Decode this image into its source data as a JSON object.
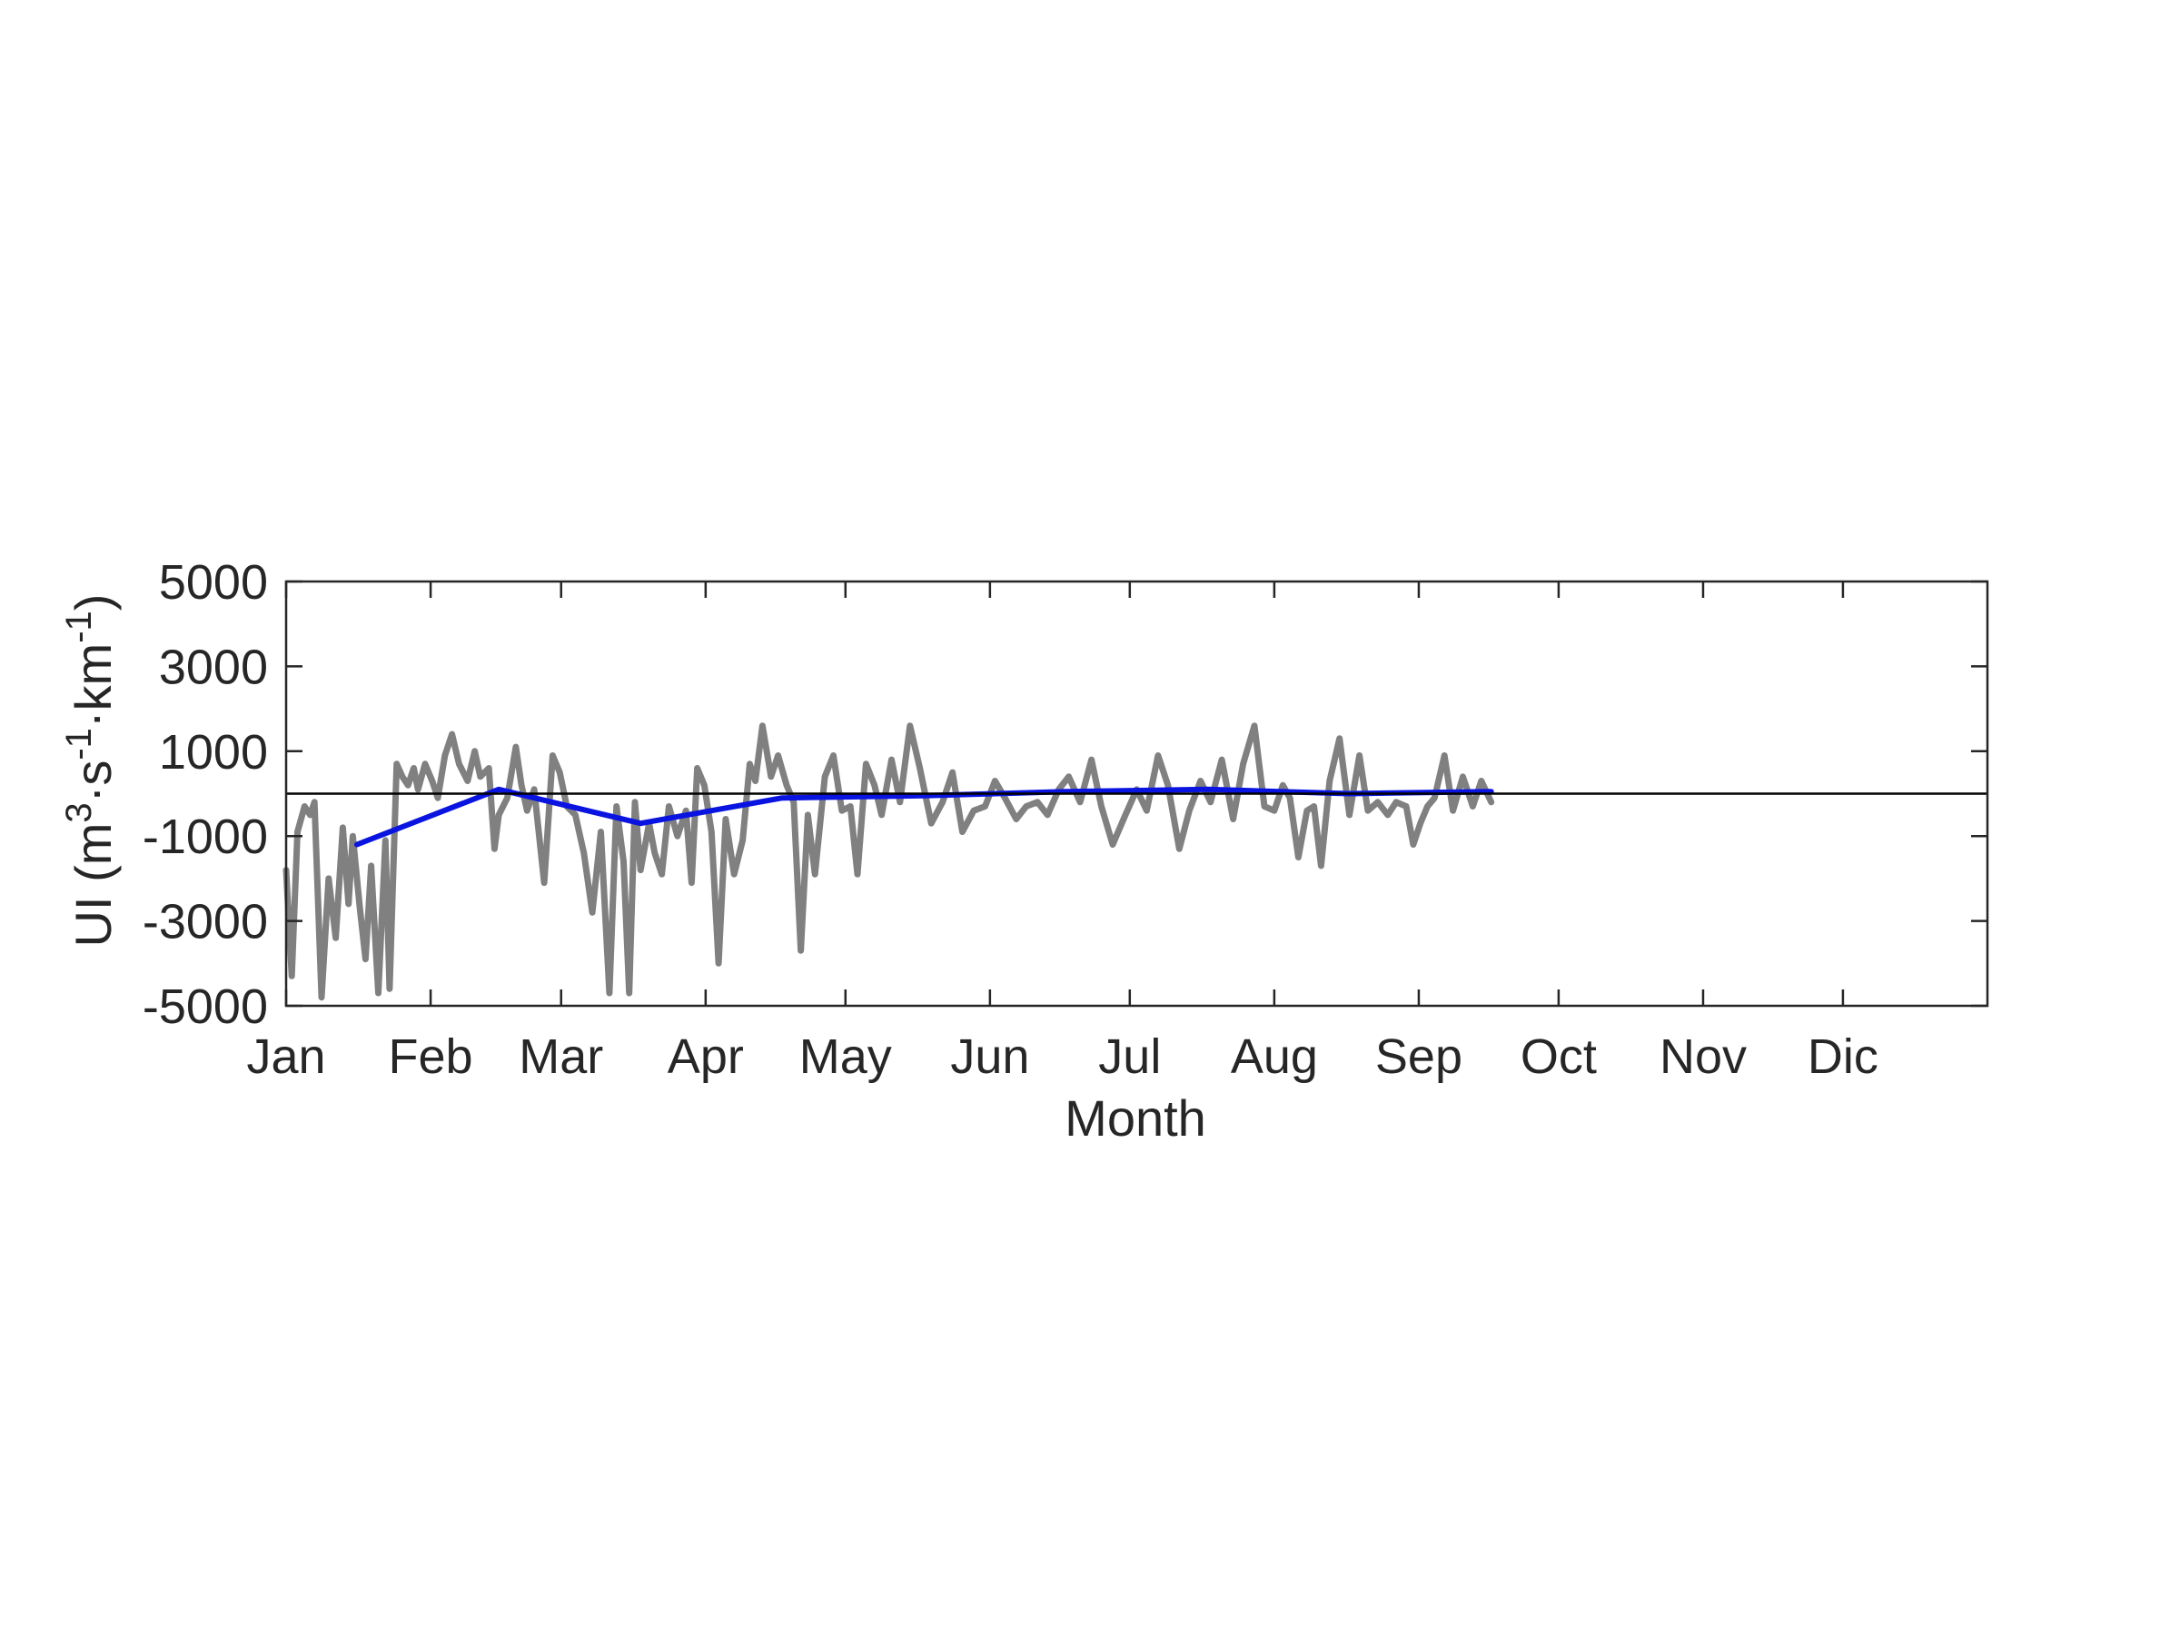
{
  "chart_data": {
    "type": "line",
    "title": "",
    "xlabel": "Month",
    "ylabel": {
      "prefix": "UI (m",
      "sup1": "3",
      "mid1": "·s",
      "sup2": "-1",
      "mid2": "·km",
      "sup3": "-1",
      "suffix": ")"
    },
    "ylim": [
      -5000,
      5000
    ],
    "xlim": [
      0,
      12
    ],
    "yticks": [
      {
        "value": 5000,
        "label": "5000"
      },
      {
        "value": 3000,
        "label": "3000"
      },
      {
        "value": 1000,
        "label": "1000"
      },
      {
        "value": -1000,
        "label": "-1000"
      },
      {
        "value": -3000,
        "label": "-3000"
      },
      {
        "value": -5000,
        "label": "-5000"
      }
    ],
    "xticks": [
      {
        "value": 0,
        "label": "Jan"
      },
      {
        "value": 1,
        "label": "Feb"
      },
      {
        "value": 2,
        "label": "Mar"
      },
      {
        "value": 3,
        "label": "Apr"
      },
      {
        "value": 4,
        "label": "May"
      },
      {
        "value": 5,
        "label": "Jun"
      },
      {
        "value": 6,
        "label": "Jul"
      },
      {
        "value": 7,
        "label": "Aug"
      },
      {
        "value": 8,
        "label": "Sep"
      },
      {
        "value": 9,
        "label": "Oct"
      },
      {
        "value": 10,
        "label": "Nov"
      },
      {
        "value": 11,
        "label": "Dic"
      }
    ],
    "zero_line": 0,
    "grid": false,
    "legend": "none",
    "series": [
      {
        "style": "daily",
        "color": "#808080",
        "x": [
          0.0,
          0.04,
          0.08,
          0.13,
          0.17,
          0.2,
          0.25,
          0.3,
          0.35,
          0.4,
          0.44,
          0.47,
          0.52,
          0.56,
          0.6,
          0.65,
          0.7,
          0.73,
          0.78,
          0.82,
          0.86,
          0.9,
          0.93,
          0.98,
          1.03,
          1.07,
          1.12,
          1.17,
          1.22,
          1.28,
          1.33,
          1.37,
          1.43,
          1.47,
          1.5,
          1.56,
          1.62,
          1.66,
          1.7,
          1.75,
          1.82,
          1.88,
          1.93,
          1.98,
          2.04,
          2.1,
          2.16,
          2.22,
          2.28,
          2.33,
          2.38,
          2.42,
          2.46,
          2.5,
          2.56,
          2.6,
          2.65,
          2.7,
          2.76,
          2.82,
          2.86,
          2.9,
          2.95,
          3.0,
          3.05,
          3.1,
          3.16,
          3.22,
          3.27,
          3.31,
          3.36,
          3.42,
          3.47,
          3.53,
          3.58,
          3.63,
          3.68,
          3.73,
          3.8,
          3.86,
          3.92,
          3.98,
          4.03,
          4.09,
          4.15,
          4.2,
          4.27,
          4.33,
          4.4,
          4.47,
          4.55,
          4.63,
          4.7,
          4.77,
          4.85,
          4.93,
          5.0,
          5.07,
          5.15,
          5.22,
          5.3,
          5.37,
          5.45,
          5.52,
          5.6,
          5.68,
          5.75,
          5.83,
          5.92,
          6.0,
          6.07,
          6.15,
          6.22,
          6.3,
          6.37,
          6.45,
          6.52,
          6.6,
          6.68,
          6.75,
          6.83,
          6.9,
          6.97,
          7.03,
          7.08,
          7.14,
          7.2,
          7.25,
          7.3,
          7.36,
          7.43,
          7.5,
          7.57,
          7.63,
          7.7,
          7.77,
          7.83,
          7.9,
          7.95,
          8.0,
          8.05,
          8.1,
          8.17,
          8.23,
          8.3,
          8.37,
          8.43,
          8.5
        ],
        "values": [
          -1800,
          -4300,
          -900,
          -300,
          -500,
          -200,
          -4800,
          -2000,
          -3400,
          -800,
          -2600,
          -1000,
          -2700,
          -3900,
          -1700,
          -4700,
          -1100,
          -4600,
          700,
          400,
          200,
          600,
          100,
          700,
          300,
          -100,
          900,
          1400,
          700,
          300,
          1000,
          400,
          600,
          -1300,
          -500,
          -100,
          1100,
          200,
          -400,
          100,
          -2100,
          900,
          500,
          -300,
          -500,
          -1400,
          -2800,
          -900,
          -4700,
          -300,
          -1600,
          -4700,
          -200,
          -1800,
          -700,
          -1400,
          -1900,
          -300,
          -1000,
          -400,
          -2100,
          600,
          200,
          -900,
          -4000,
          -600,
          -1900,
          -1100,
          700,
          300,
          1600,
          400,
          900,
          200,
          -200,
          -3700,
          -500,
          -1900,
          400,
          900,
          -400,
          -300,
          -1900,
          700,
          200,
          -500,
          800,
          -200,
          1600,
          600,
          -700,
          -200,
          500,
          -900,
          -400,
          -300,
          300,
          -100,
          -600,
          -300,
          -200,
          -500,
          100,
          400,
          -200,
          800,
          -300,
          -1200,
          -500,
          100,
          -400,
          900,
          200,
          -1300,
          -400,
          300,
          -200,
          800,
          -600,
          700,
          1600,
          -300,
          -400,
          200,
          -100,
          -1500,
          -400,
          -300,
          -1700,
          300,
          1300,
          -500,
          900,
          -400,
          -200,
          -500,
          -200,
          -300,
          -1200,
          -700,
          -300,
          -100,
          900,
          -400,
          400,
          -300,
          300,
          -200
        ]
      },
      {
        "style": "monthly-mean",
        "color": "#0a14e0",
        "x": [
          0.5,
          1.5,
          2.5,
          3.5,
          4.5,
          5.5,
          6.5,
          7.5,
          8.5
        ],
        "values": [
          -1200,
          100,
          -700,
          -100,
          -50,
          50,
          100,
          0,
          50
        ]
      }
    ]
  }
}
